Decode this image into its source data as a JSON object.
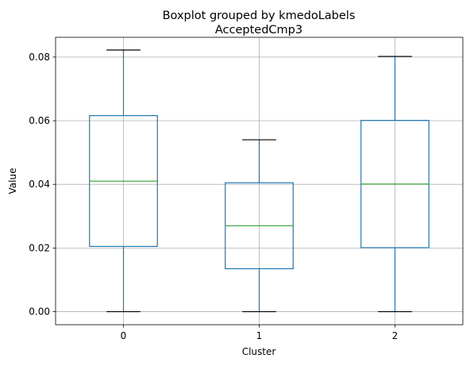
{
  "chart_data": {
    "type": "boxplot",
    "suptitle": "Boxplot grouped by kmedoLabels",
    "title": "AcceptedCmp3",
    "xlabel": "Cluster",
    "ylabel": "Value",
    "categories": [
      "0",
      "1",
      "2"
    ],
    "ylim": [
      -0.0041,
      0.0862
    ],
    "yticks": [
      0.0,
      0.02,
      0.04,
      0.06,
      0.08
    ],
    "ytick_labels": [
      "0.00",
      "0.02",
      "0.04",
      "0.06",
      "0.08"
    ],
    "grid": true,
    "colors": {
      "box": "#1f77b4",
      "median": "#2ca02c",
      "whisker_cap": "#000000",
      "grid": "#b0b0b0"
    },
    "boxes": [
      {
        "category": "0",
        "whisker_low": 0.0,
        "q1": 0.0205,
        "median": 0.041,
        "q3": 0.0616,
        "whisker_high": 0.0822
      },
      {
        "category": "1",
        "whisker_low": 0.0,
        "q1": 0.0135,
        "median": 0.027,
        "q3": 0.0405,
        "whisker_high": 0.054
      },
      {
        "category": "2",
        "whisker_low": 0.0,
        "q1": 0.0201,
        "median": 0.0401,
        "q3": 0.0601,
        "whisker_high": 0.0802
      }
    ]
  }
}
